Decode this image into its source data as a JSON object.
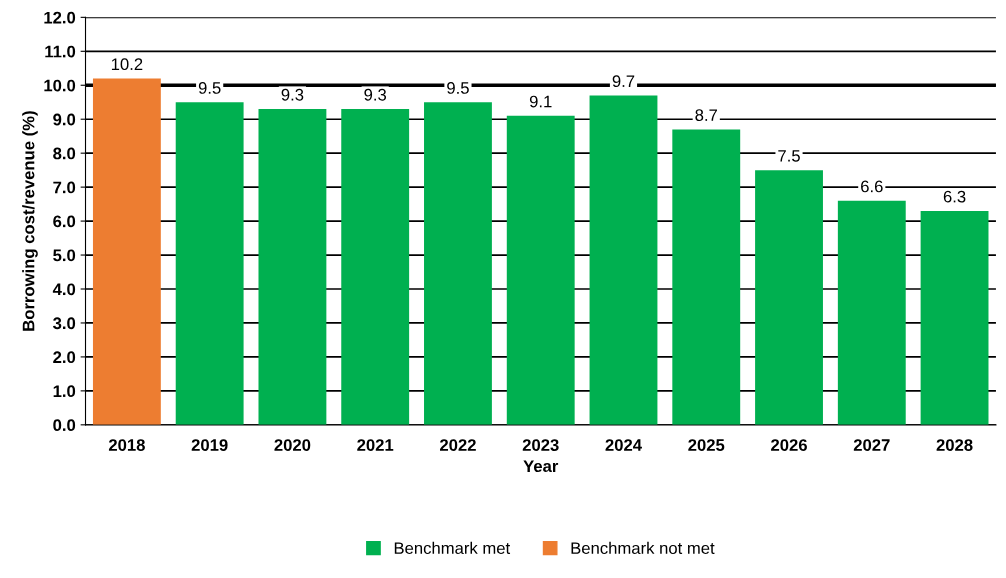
{
  "chart_data": {
    "type": "bar",
    "xlabel": "Year",
    "ylabel": "Borrowing cost/revenue (%)",
    "categories": [
      "2018",
      "2019",
      "2020",
      "2021",
      "2022",
      "2023",
      "2024",
      "2025",
      "2026",
      "2027",
      "2028"
    ],
    "series": [
      {
        "name": "Benchmark met",
        "color": "#00b050",
        "values": [
          null,
          9.5,
          9.3,
          9.3,
          9.5,
          9.1,
          9.7,
          8.7,
          7.5,
          6.6,
          6.3
        ]
      },
      {
        "name": "Benchmark not met",
        "color": "#ed7d31",
        "values": [
          10.2,
          null,
          null,
          null,
          null,
          null,
          null,
          null,
          null,
          null,
          null
        ]
      }
    ],
    "data_labels": true,
    "ylim": [
      0,
      12
    ],
    "yticks": [
      {
        "value": 0,
        "label": "0.0"
      },
      {
        "value": 1,
        "label": "1.0"
      },
      {
        "value": 2,
        "label": "2.0"
      },
      {
        "value": 3,
        "label": "3.0"
      },
      {
        "value": 4,
        "label": "4.0"
      },
      {
        "value": 5,
        "label": "5.0"
      },
      {
        "value": 6,
        "label": "6.0"
      },
      {
        "value": 7,
        "label": "7.0"
      },
      {
        "value": 8,
        "label": "8.0"
      },
      {
        "value": 9,
        "label": "9.0"
      },
      {
        "value": 10,
        "label": "10.0"
      },
      {
        "value": 11,
        "label": "11.0"
      },
      {
        "value": 12,
        "label": "12.0"
      }
    ],
    "ref_lines": [
      {
        "axis": "y",
        "value": 10,
        "color": "#000000"
      }
    ],
    "grid": "y",
    "legend": "bottom"
  }
}
